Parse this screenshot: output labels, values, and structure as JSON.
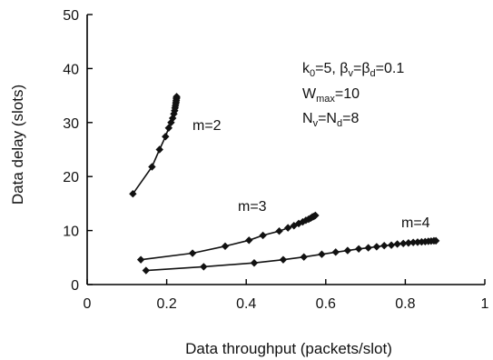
{
  "chart_data": {
    "type": "line",
    "xlabel": "Data throughput (packets/slot)",
    "ylabel": "Data delay (slots)",
    "xlim": [
      0,
      1
    ],
    "ylim": [
      0,
      50
    ],
    "x_ticks": [
      "0",
      "0.2",
      "0.4",
      "0.6",
      "0.8",
      "1"
    ],
    "y_ticks": [
      "0",
      "10",
      "20",
      "30",
      "40",
      "50"
    ],
    "grid": false,
    "annotations": [
      "k0=5, βv=βd=0.1",
      "Wmax=10",
      "Nv=Nd=8"
    ],
    "series": [
      {
        "name": "m=2",
        "x": [
          0.115,
          0.163,
          0.182,
          0.197,
          0.205,
          0.211,
          0.215,
          0.218,
          0.22,
          0.221,
          0.222,
          0.223,
          0.2235,
          0.224,
          0.2245,
          0.2248,
          0.225
        ],
        "y": [
          16.8,
          21.8,
          25.0,
          27.4,
          29.0,
          30.0,
          30.8,
          31.6,
          32.2,
          32.7,
          33.1,
          33.5,
          33.8,
          34.1,
          34.4,
          34.6,
          34.8
        ]
      },
      {
        "name": "m=3",
        "x": [
          0.135,
          0.265,
          0.347,
          0.407,
          0.442,
          0.483,
          0.505,
          0.52,
          0.532,
          0.542,
          0.55,
          0.557,
          0.562,
          0.566,
          0.569,
          0.572,
          0.574
        ],
        "y": [
          4.6,
          5.8,
          7.1,
          8.2,
          9.1,
          9.9,
          10.5,
          10.9,
          11.3,
          11.6,
          11.9,
          12.1,
          12.3,
          12.5,
          12.6,
          12.7,
          12.8
        ]
      },
      {
        "name": "m=4",
        "x": [
          0.148,
          0.293,
          0.42,
          0.493,
          0.545,
          0.59,
          0.625,
          0.655,
          0.683,
          0.707,
          0.728,
          0.747,
          0.765,
          0.78,
          0.795,
          0.808,
          0.82,
          0.831,
          0.841,
          0.85,
          0.858,
          0.865,
          0.872,
          0.877
        ],
        "y": [
          2.6,
          3.3,
          4.0,
          4.6,
          5.1,
          5.6,
          6.0,
          6.3,
          6.6,
          6.8,
          7.0,
          7.2,
          7.3,
          7.5,
          7.6,
          7.7,
          7.8,
          7.85,
          7.9,
          7.95,
          8.0,
          8.05,
          8.1,
          8.1
        ]
      }
    ]
  }
}
